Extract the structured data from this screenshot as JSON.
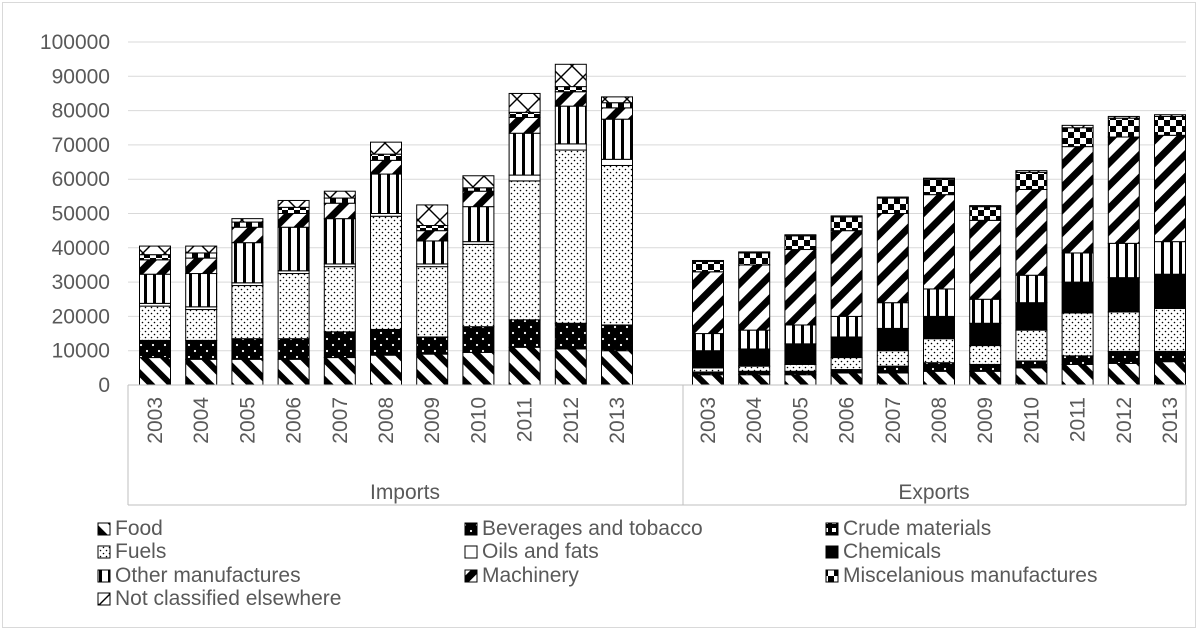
{
  "chart_data": {
    "type": "bar",
    "stacked": true,
    "title": "",
    "xlabel": "",
    "ylabel": "",
    "ylim": [
      0,
      100000
    ],
    "yticks": [
      0,
      10000,
      20000,
      30000,
      40000,
      50000,
      60000,
      70000,
      80000,
      90000,
      100000
    ],
    "grid": true,
    "legend_position": "bottom",
    "groups": [
      {
        "name": "Imports",
        "categories": [
          "2003",
          "2004",
          "2005",
          "2006",
          "2007",
          "2008",
          "2009",
          "2010",
          "2011",
          "2012",
          "2013"
        ],
        "series": [
          {
            "name": "Food",
            "values": [
              8000,
              7500,
              7500,
              7500,
              8000,
              8700,
              9000,
              9500,
              11000,
              10500,
              10000
            ]
          },
          {
            "name": "Beverages and tobacco",
            "values": [
              5000,
              5500,
              6000,
              6000,
              7500,
              7500,
              5000,
              7500,
              8000,
              7500,
              7500
            ]
          },
          {
            "name": "Crude materials",
            "values": [
              0,
              0,
              0,
              0,
              0,
              0,
              0,
              0,
              0,
              0,
              0
            ]
          },
          {
            "name": "Fuels",
            "values": [
              10000,
              9000,
              15500,
              19000,
              19000,
              33000,
              20500,
              24000,
              40500,
              50500,
              46500
            ]
          },
          {
            "name": "Oils and fats",
            "values": [
              800,
              800,
              800,
              800,
              800,
              800,
              800,
              800,
              1700,
              1800,
              1800
            ]
          },
          {
            "name": "Chemicals",
            "values": [
              0,
              0,
              0,
              0,
              0,
              0,
              0,
              0,
              0,
              0,
              0
            ]
          },
          {
            "name": "Other manufactures",
            "values": [
              8500,
              9700,
              11700,
              12700,
              13200,
              11500,
              6700,
              10200,
              12200,
              11000,
              11700
            ]
          },
          {
            "name": "Machinery",
            "values": [
              4200,
              4500,
              4500,
              4000,
              4500,
              4000,
              3000,
              4500,
              4600,
              4200,
              3300
            ]
          },
          {
            "name": "Miscelanious manufactures",
            "values": [
              1500,
              1500,
              1500,
              1800,
              1500,
              1800,
              1500,
              1000,
              1500,
              1500,
              1500
            ]
          },
          {
            "name": "Not classified elsewhere",
            "values": [
              2500,
              2000,
              1000,
              2000,
              2000,
              3500,
              6000,
              3500,
              5500,
              6500,
              1700
            ]
          }
        ]
      },
      {
        "name": "Exports",
        "categories": [
          "2003",
          "2004",
          "2005",
          "2006",
          "2007",
          "2008",
          "2009",
          "2010",
          "2011",
          "2012",
          "2013"
        ],
        "series": [
          {
            "name": "Food",
            "values": [
              3000,
              3000,
              3000,
              3500,
              3500,
              4000,
              4000,
              5000,
              6000,
              6300,
              6800
            ]
          },
          {
            "name": "Beverages and tobacco",
            "values": [
              800,
              1000,
              1000,
              1000,
              2000,
              2500,
              2000,
              2000,
              2500,
              3500,
              3000
            ]
          },
          {
            "name": "Crude materials",
            "values": [
              0,
              0,
              0,
              0,
              0,
              0,
              0,
              0,
              0,
              0,
              0
            ]
          },
          {
            "name": "Fuels",
            "values": [
              1200,
              1500,
              2000,
              3500,
              4500,
              7000,
              5500,
              9000,
              12500,
              11500,
              12500
            ]
          },
          {
            "name": "Oils and fats",
            "values": [
              0,
              0,
              0,
              0,
              0,
              0,
              0,
              0,
              0,
              0,
              0
            ]
          },
          {
            "name": "Chemicals",
            "values": [
              5000,
              5000,
              6000,
              6000,
              6500,
              6500,
              6500,
              8000,
              9000,
              10000,
              10000
            ]
          },
          {
            "name": "Other manufactures",
            "values": [
              5000,
              5500,
              5500,
              6000,
              7500,
              8000,
              7000,
              8000,
              8500,
              10000,
              9500
            ]
          },
          {
            "name": "Machinery",
            "values": [
              18000,
              19000,
              22000,
              25000,
              26000,
              27500,
              23000,
              25000,
              31000,
              31000,
              31000
            ]
          },
          {
            "name": "Miscelanious manufactures",
            "values": [
              3000,
              3500,
              4000,
              4000,
              4500,
              4500,
              4000,
              5000,
              5500,
              5500,
              5500
            ]
          },
          {
            "name": "Not classified elsewhere",
            "values": [
              300,
              300,
              300,
              300,
              300,
              300,
              300,
              500,
              700,
              500,
              500
            ]
          }
        ]
      }
    ]
  }
}
